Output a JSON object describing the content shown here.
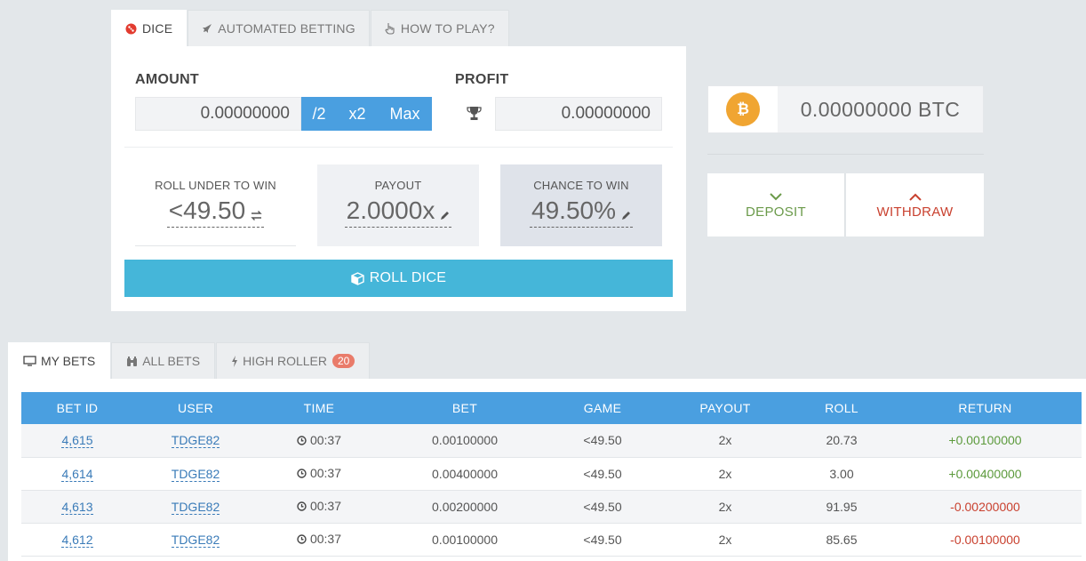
{
  "top_tabs": [
    {
      "label": "DICE",
      "icon": "dice-icon",
      "active": true
    },
    {
      "label": "AUTOMATED BETTING",
      "icon": "rocket-icon",
      "active": false
    },
    {
      "label": "HOW TO PLAY?",
      "icon": "hand-pointer-icon",
      "active": false
    }
  ],
  "bet": {
    "amount_label": "AMOUNT",
    "amount_value": "0.00000000",
    "half_label": "/2",
    "double_label": "x2",
    "max_label": "Max",
    "profit_label": "PROFIT",
    "profit_value": "0.00000000"
  },
  "stats": {
    "roll_label": "ROLL UNDER TO WIN",
    "roll_value": "<49.50",
    "payout_label": "PAYOUT",
    "payout_value": "2.0000x",
    "chance_label": "CHANCE TO WIN",
    "chance_value": "49.50%"
  },
  "roll_button": "ROLL DICE",
  "wallet": {
    "coin_symbol": "₿",
    "balance": "0.00000000 BTC",
    "deposit_label": "DEPOSIT",
    "withdraw_label": "WITHDRAW"
  },
  "bottom_tabs": {
    "my_bets": "MY BETS",
    "all_bets": "ALL BETS",
    "high_roller": "HIGH ROLLER",
    "high_roller_count": "20"
  },
  "table": {
    "headers": [
      "BET ID",
      "USER",
      "TIME",
      "BET",
      "GAME",
      "PAYOUT",
      "ROLL",
      "RETURN"
    ],
    "rows": [
      {
        "id": "4,615",
        "user": "TDGE82",
        "time": "00:37",
        "bet": "0.00100000",
        "game": "<49.50",
        "payout": "2x",
        "roll": "20.73",
        "ret": "+0.00100000",
        "win": true
      },
      {
        "id": "4,614",
        "user": "TDGE82",
        "time": "00:37",
        "bet": "0.00400000",
        "game": "<49.50",
        "payout": "2x",
        "roll": "3.00",
        "ret": "+0.00400000",
        "win": true
      },
      {
        "id": "4,613",
        "user": "TDGE82",
        "time": "00:37",
        "bet": "0.00200000",
        "game": "<49.50",
        "payout": "2x",
        "roll": "91.95",
        "ret": "-0.00200000",
        "win": false
      },
      {
        "id": "4,612",
        "user": "TDGE82",
        "time": "00:37",
        "bet": "0.00100000",
        "game": "<49.50",
        "payout": "2x",
        "roll": "85.65",
        "ret": "-0.00100000",
        "win": false
      }
    ]
  },
  "colors": {
    "accent_blue": "#4a9fe0",
    "roll_button": "#45b6d9",
    "win_green": "#5c9a3c",
    "loss_red": "#c9412f",
    "bitcoin_orange": "#f0a532"
  }
}
